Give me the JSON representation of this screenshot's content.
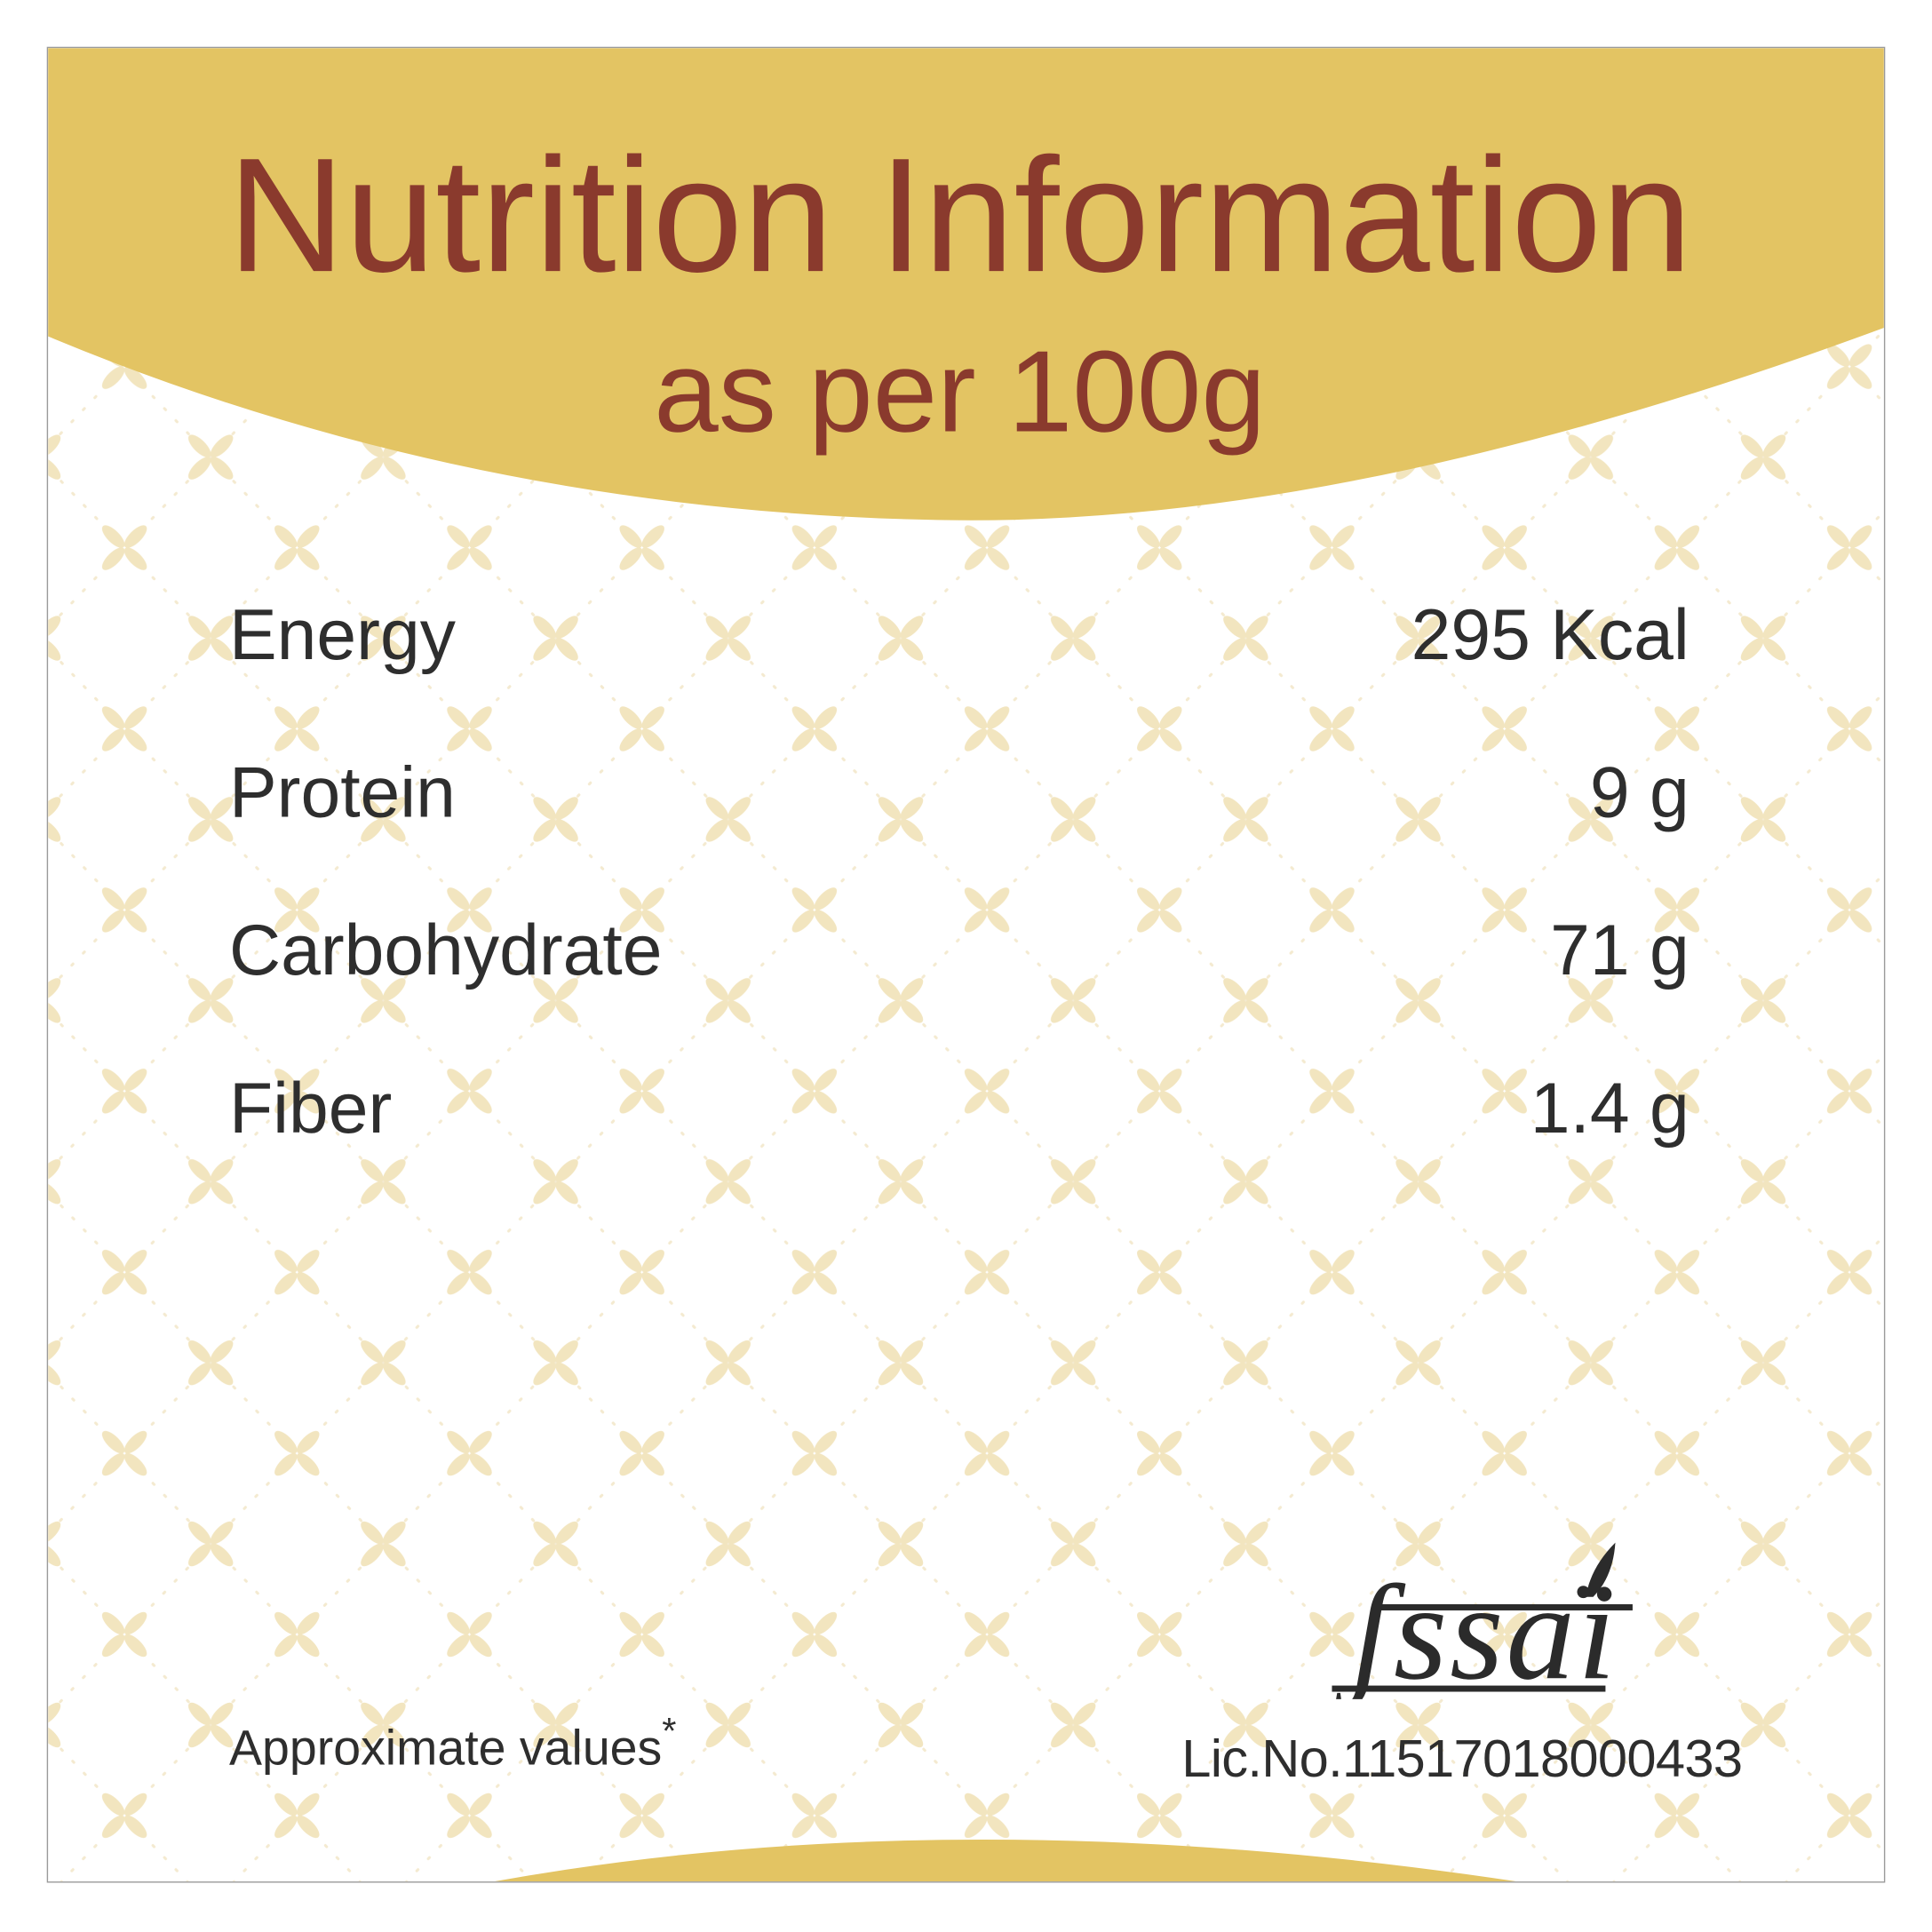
{
  "header": {
    "title": "Nutrition Information",
    "subtitle": "as per 100g"
  },
  "nutrients": [
    {
      "label": "Energy",
      "value": "295 Kcal"
    },
    {
      "label": "Protein",
      "value": "9 g"
    },
    {
      "label": "Carbohydrate",
      "value": "71 g"
    },
    {
      "label": "Fiber",
      "value": "1.4 g"
    }
  ],
  "footer": {
    "note": "Approximate values",
    "note_mark": "*",
    "logo_text": "fssai",
    "license": "Lic.No.11517018000433"
  },
  "colors": {
    "band": "#e3c463",
    "title": "#8a3a2d",
    "text": "#2e2e2e",
    "pattern": "#f2e5bf"
  }
}
